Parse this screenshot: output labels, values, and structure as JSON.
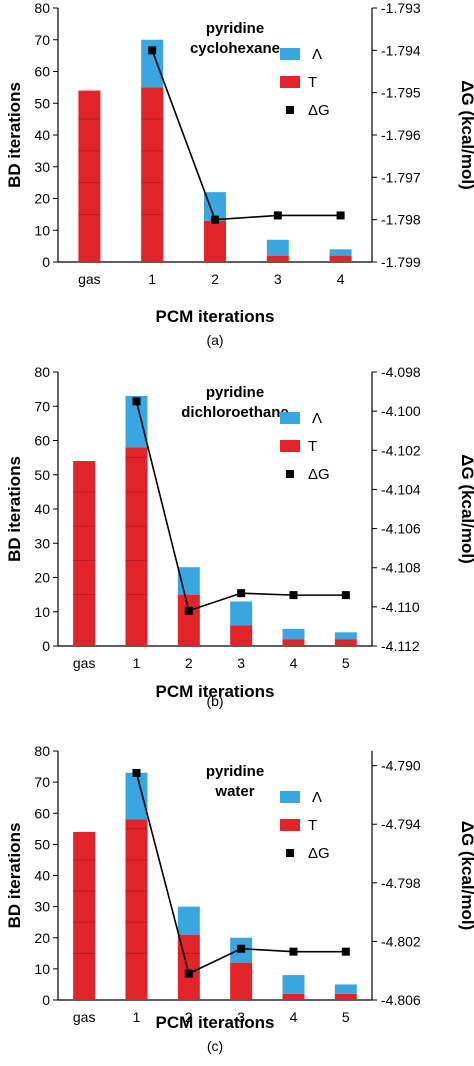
{
  "colors": {
    "lambda": "#3aa6e0",
    "t": "#e2242a",
    "dg": "#000000",
    "seg_line": "#b01a1f"
  },
  "chart_data": [
    {
      "type": "bar",
      "caption": "(a)",
      "title_lines": [
        "pyridine",
        "cyclohexane"
      ],
      "categories": [
        "gas",
        "1",
        "2",
        "3",
        "4"
      ],
      "series": [
        {
          "name": "Λ",
          "values": [
            0,
            15,
            9,
            5,
            2
          ]
        },
        {
          "name": "T",
          "values": [
            54,
            55,
            13,
            2,
            2
          ]
        }
      ],
      "dg": {
        "name": "ΔG",
        "values": [
          null,
          -1.794,
          -1.798,
          -1.7979,
          -1.7979
        ]
      },
      "xlabel": "PCM iterations",
      "ylabel": "BD iterations",
      "y2label": "ΔG (kcal/mol)",
      "ylim": [
        0,
        80
      ],
      "yticks": [
        "0",
        "10",
        "20",
        "30",
        "40",
        "50",
        "60",
        "70",
        "80"
      ],
      "y2lim": [
        -1.799,
        -1.793
      ],
      "y2ticks": [
        "-1.799",
        "-1.798",
        "-1.797",
        "-1.796",
        "-1.795",
        "-1.794",
        "-1.793"
      ],
      "grid": false,
      "legend": "top-right"
    },
    {
      "type": "bar",
      "caption": "(b)",
      "title_lines": [
        "pyridine",
        "dichloroethane"
      ],
      "categories": [
        "gas",
        "1",
        "2",
        "3",
        "4",
        "5"
      ],
      "series": [
        {
          "name": "Λ",
          "values": [
            0,
            15,
            8,
            7,
            3,
            2
          ]
        },
        {
          "name": "T",
          "values": [
            54,
            58,
            15,
            6,
            2,
            2
          ]
        }
      ],
      "dg": {
        "name": "ΔG",
        "values": [
          null,
          -4.0995,
          -4.1102,
          -4.1093,
          -4.1094,
          -4.1094
        ]
      },
      "xlabel": "PCM iterations",
      "ylabel": "BD iterations",
      "y2label": "ΔG (kcal/mol)",
      "ylim": [
        0,
        80
      ],
      "yticks": [
        "0",
        "10",
        "20",
        "30",
        "40",
        "50",
        "60",
        "70",
        "80"
      ],
      "y2lim": [
        -4.112,
        -4.098
      ],
      "y2ticks": [
        "-4.112",
        "-4.110",
        "-4.108",
        "-4.106",
        "-4.104",
        "-4.102",
        "-4.100",
        "-4.098"
      ],
      "grid": false,
      "legend": "top-right"
    },
    {
      "type": "bar",
      "caption": "(c)",
      "title_lines": [
        "pyridine",
        "water"
      ],
      "categories": [
        "gas",
        "1",
        "2",
        "3",
        "4",
        "5"
      ],
      "series": [
        {
          "name": "Λ",
          "values": [
            0,
            15,
            9,
            8,
            6,
            3
          ]
        },
        {
          "name": "T",
          "values": [
            54,
            58,
            21,
            12,
            2,
            2
          ]
        }
      ],
      "dg": {
        "name": "ΔG",
        "values": [
          null,
          -4.7905,
          -4.8042,
          -4.8025,
          -4.8027,
          -4.8027
        ]
      },
      "xlabel": "PCM iterations",
      "ylabel": "BD iterations",
      "y2label": "ΔG (kcal/mol)",
      "ylim": [
        0,
        80
      ],
      "yticks": [
        "0",
        "10",
        "20",
        "30",
        "40",
        "50",
        "60",
        "70",
        "80"
      ],
      "y2lim": [
        -4.806,
        -4.789
      ],
      "y2ticks": [
        "-4.806",
        "-4.802",
        "-4.798",
        "-4.794",
        "-4.790"
      ],
      "y2tickvalues": [
        -4.806,
        -4.802,
        -4.798,
        -4.794,
        -4.79
      ],
      "grid": false,
      "legend": "top-right"
    }
  ]
}
